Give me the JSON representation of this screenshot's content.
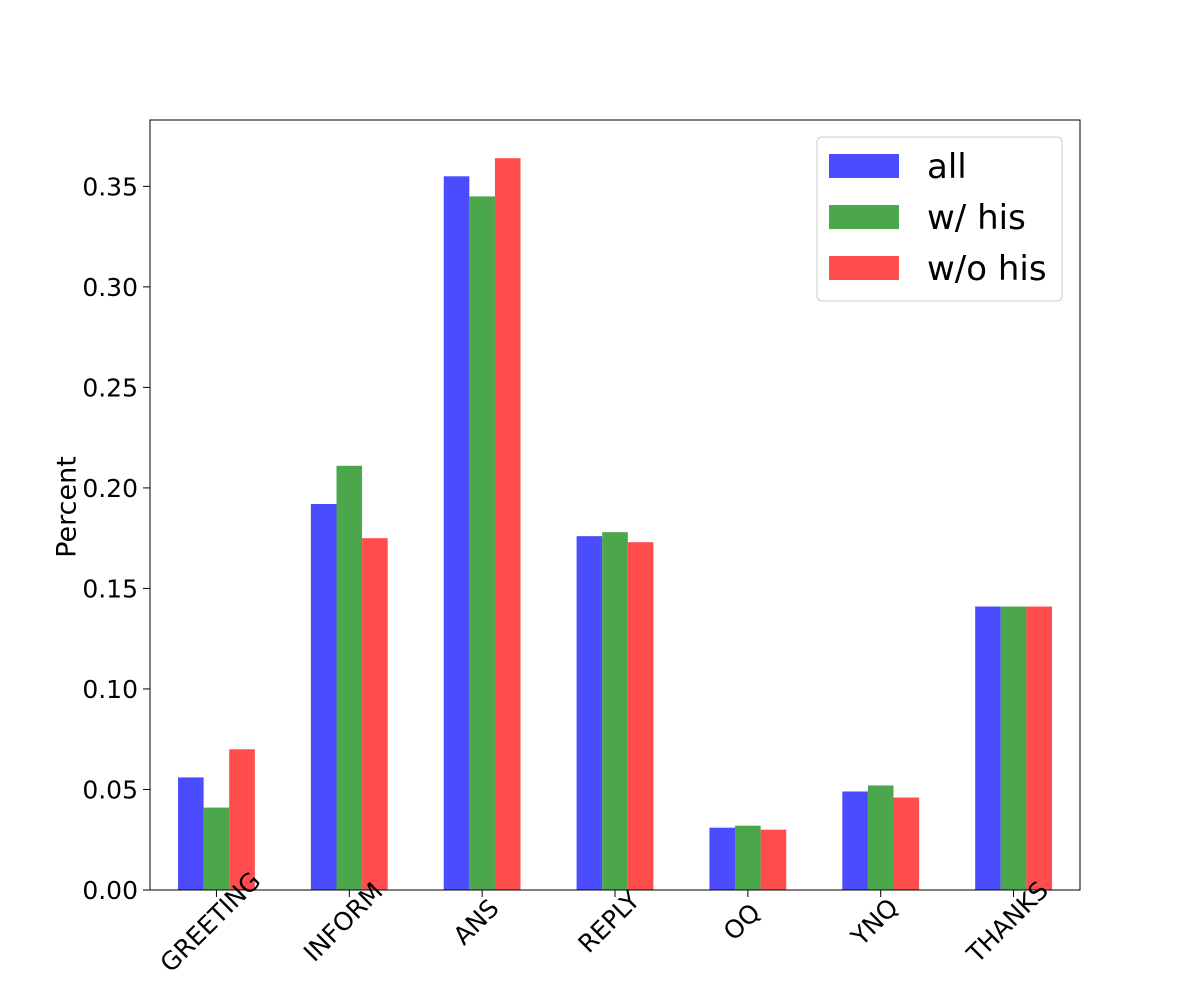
{
  "chart_data": {
    "type": "bar",
    "categories": [
      "GREETING",
      "INFORM",
      "ANS",
      "REPLY",
      "OQ",
      "YNQ",
      "THANKS"
    ],
    "series": [
      {
        "name": "all",
        "color": "#4c4cff",
        "values": [
          0.056,
          0.192,
          0.355,
          0.176,
          0.031,
          0.049,
          0.141
        ]
      },
      {
        "name": "w/ his",
        "color": "#4ca64c",
        "values": [
          0.041,
          0.211,
          0.345,
          0.178,
          0.032,
          0.052,
          0.141
        ]
      },
      {
        "name": "w/o his",
        "color": "#ff4c4c",
        "values": [
          0.07,
          0.175,
          0.364,
          0.173,
          0.03,
          0.046,
          0.141
        ]
      }
    ],
    "ylabel": "Percent",
    "ylim": [
      0,
      0.383
    ],
    "yticks": [
      "0.00",
      "0.05",
      "0.10",
      "0.15",
      "0.20",
      "0.25",
      "0.30",
      "0.35"
    ],
    "legend_position": "top-right",
    "grid": false
  }
}
